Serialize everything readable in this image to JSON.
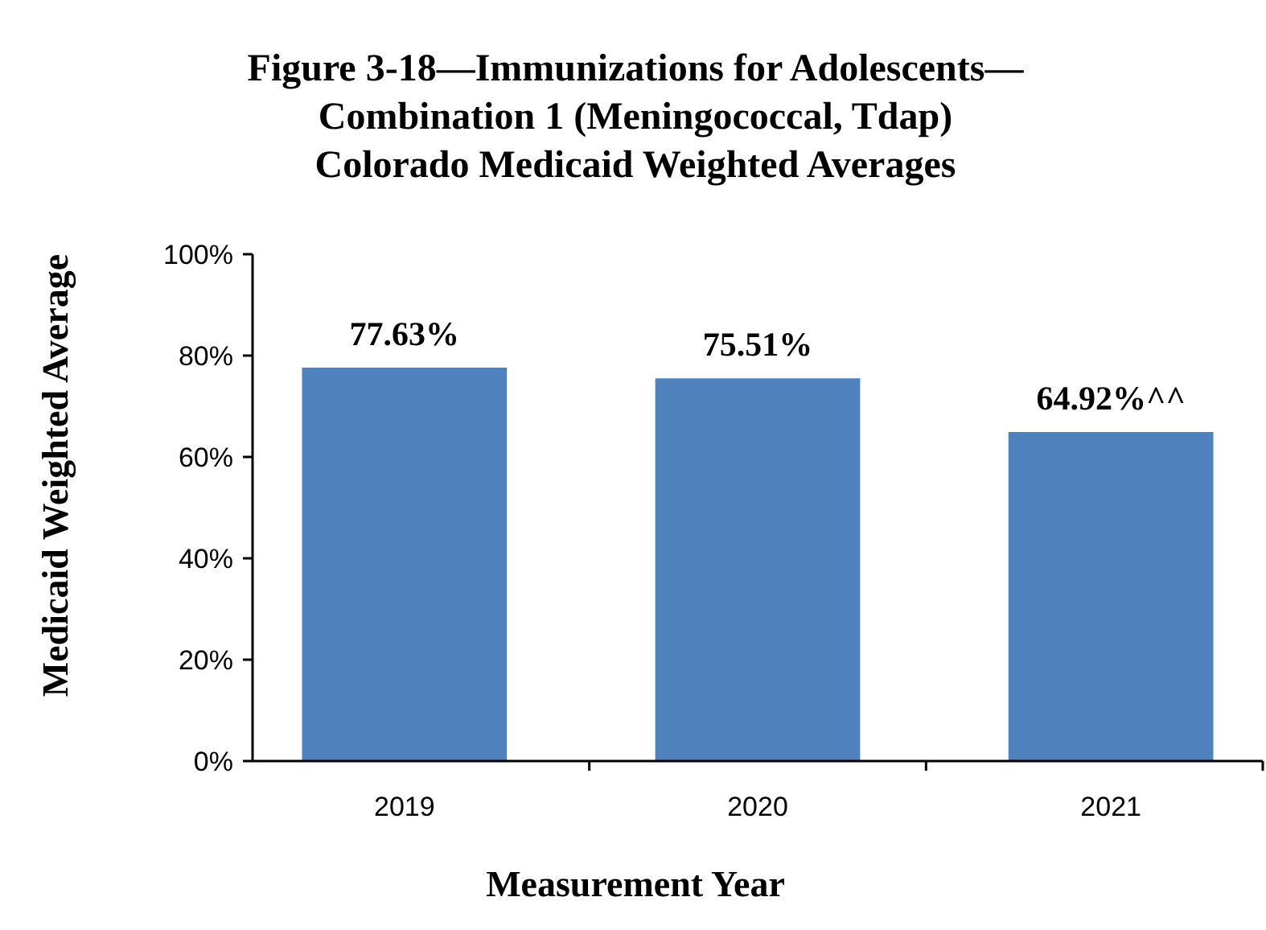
{
  "chart_data": {
    "type": "bar",
    "title": "Figure 3-18—Immunizations for Adolescents—\nCombination 1 (Meningococcal, Tdap)\nColorado Medicaid Weighted Averages",
    "xlabel": "Measurement Year",
    "ylabel": "Medicaid Weighted Average",
    "categories": [
      "2019",
      "2020",
      "2021"
    ],
    "values": [
      77.63,
      75.51,
      64.92
    ],
    "value_labels": [
      "77.63%",
      "75.51%",
      "64.92%^^"
    ],
    "color": "#4f81bd",
    "ylim": [
      0,
      100
    ],
    "yticks": [
      {
        "value": 0,
        "label": "0%"
      },
      {
        "value": 20,
        "label": "20%"
      },
      {
        "value": 40,
        "label": "40%"
      },
      {
        "value": 60,
        "label": "60%"
      },
      {
        "value": 80,
        "label": "80%"
      },
      {
        "value": 100,
        "label": "100%"
      }
    ],
    "grid": false
  }
}
